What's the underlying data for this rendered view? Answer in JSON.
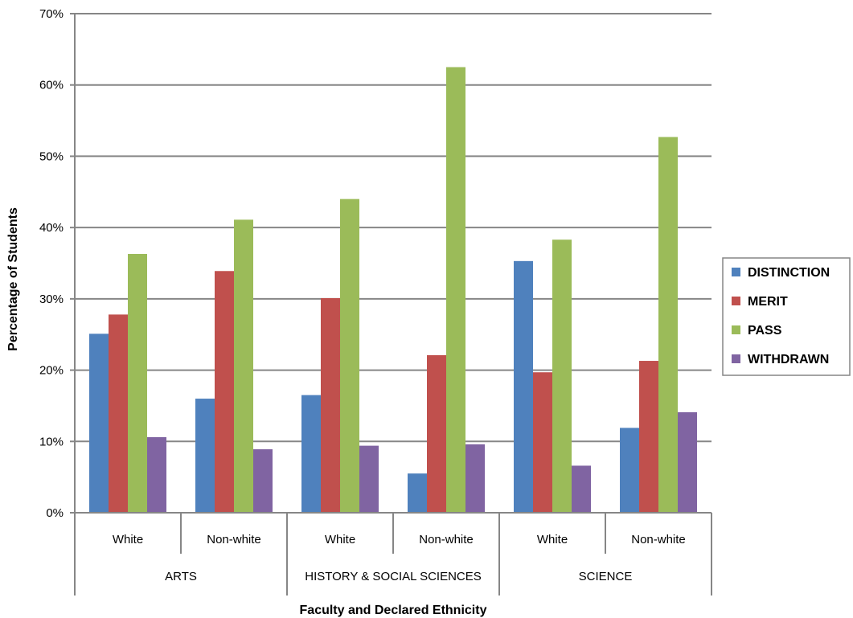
{
  "chart_data": {
    "type": "bar",
    "ylabel": "Percentage of Students",
    "xlabel": "Faculty and Declared Ethnicity",
    "ylim": [
      0,
      70
    ],
    "yticks": [
      0,
      10,
      20,
      30,
      40,
      50,
      60,
      70
    ],
    "ytick_suffix": "%",
    "grid": true,
    "legend_position": "right",
    "groups": [
      {
        "label": "ARTS",
        "categories": [
          "White",
          "Non-white"
        ]
      },
      {
        "label": "HISTORY & SOCIAL SCIENCES",
        "categories": [
          "White",
          "Non-white"
        ]
      },
      {
        "label": "SCIENCE",
        "categories": [
          "White",
          "Non-white"
        ]
      }
    ],
    "series": [
      {
        "name": "DISTINCTION",
        "color": "#4f81bd",
        "values": [
          25.1,
          16.0,
          16.5,
          5.5,
          35.3,
          11.9
        ]
      },
      {
        "name": "MERIT",
        "color": "#c0504d",
        "values": [
          27.8,
          33.9,
          30.1,
          22.1,
          19.7,
          21.3
        ]
      },
      {
        "name": "PASS",
        "color": "#9bbb59",
        "values": [
          36.3,
          41.1,
          44.0,
          62.5,
          38.3,
          52.7
        ]
      },
      {
        "name": "WITHDRAWN",
        "color": "#8064a2",
        "values": [
          10.6,
          8.9,
          9.4,
          9.6,
          6.6,
          14.1
        ]
      }
    ]
  }
}
